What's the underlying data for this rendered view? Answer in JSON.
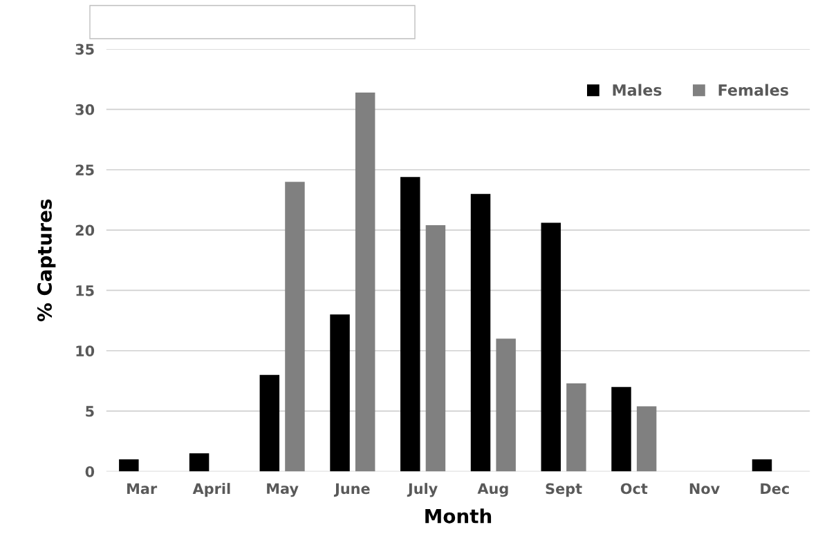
{
  "chart_data": {
    "type": "bar",
    "xlabel": "Month",
    "ylabel": "% Captures",
    "categories": [
      "Mar",
      "April",
      "May",
      "June",
      "July",
      "Aug",
      "Sept",
      "Oct",
      "Nov",
      "Dec"
    ],
    "series": [
      {
        "name": "Males",
        "color": "#000000",
        "values": [
          1,
          1.5,
          8,
          13,
          24.4,
          23,
          20.6,
          7,
          0,
          1
        ]
      },
      {
        "name": "Females",
        "color": "#808080",
        "values": [
          0,
          0,
          24,
          31.4,
          20.4,
          11,
          7.3,
          5.4,
          0,
          0
        ]
      }
    ],
    "ylim": [
      0,
      35
    ],
    "yticks": [
      0,
      5,
      10,
      15,
      20,
      25,
      30,
      35
    ],
    "grid": "y",
    "legend": "top right"
  }
}
